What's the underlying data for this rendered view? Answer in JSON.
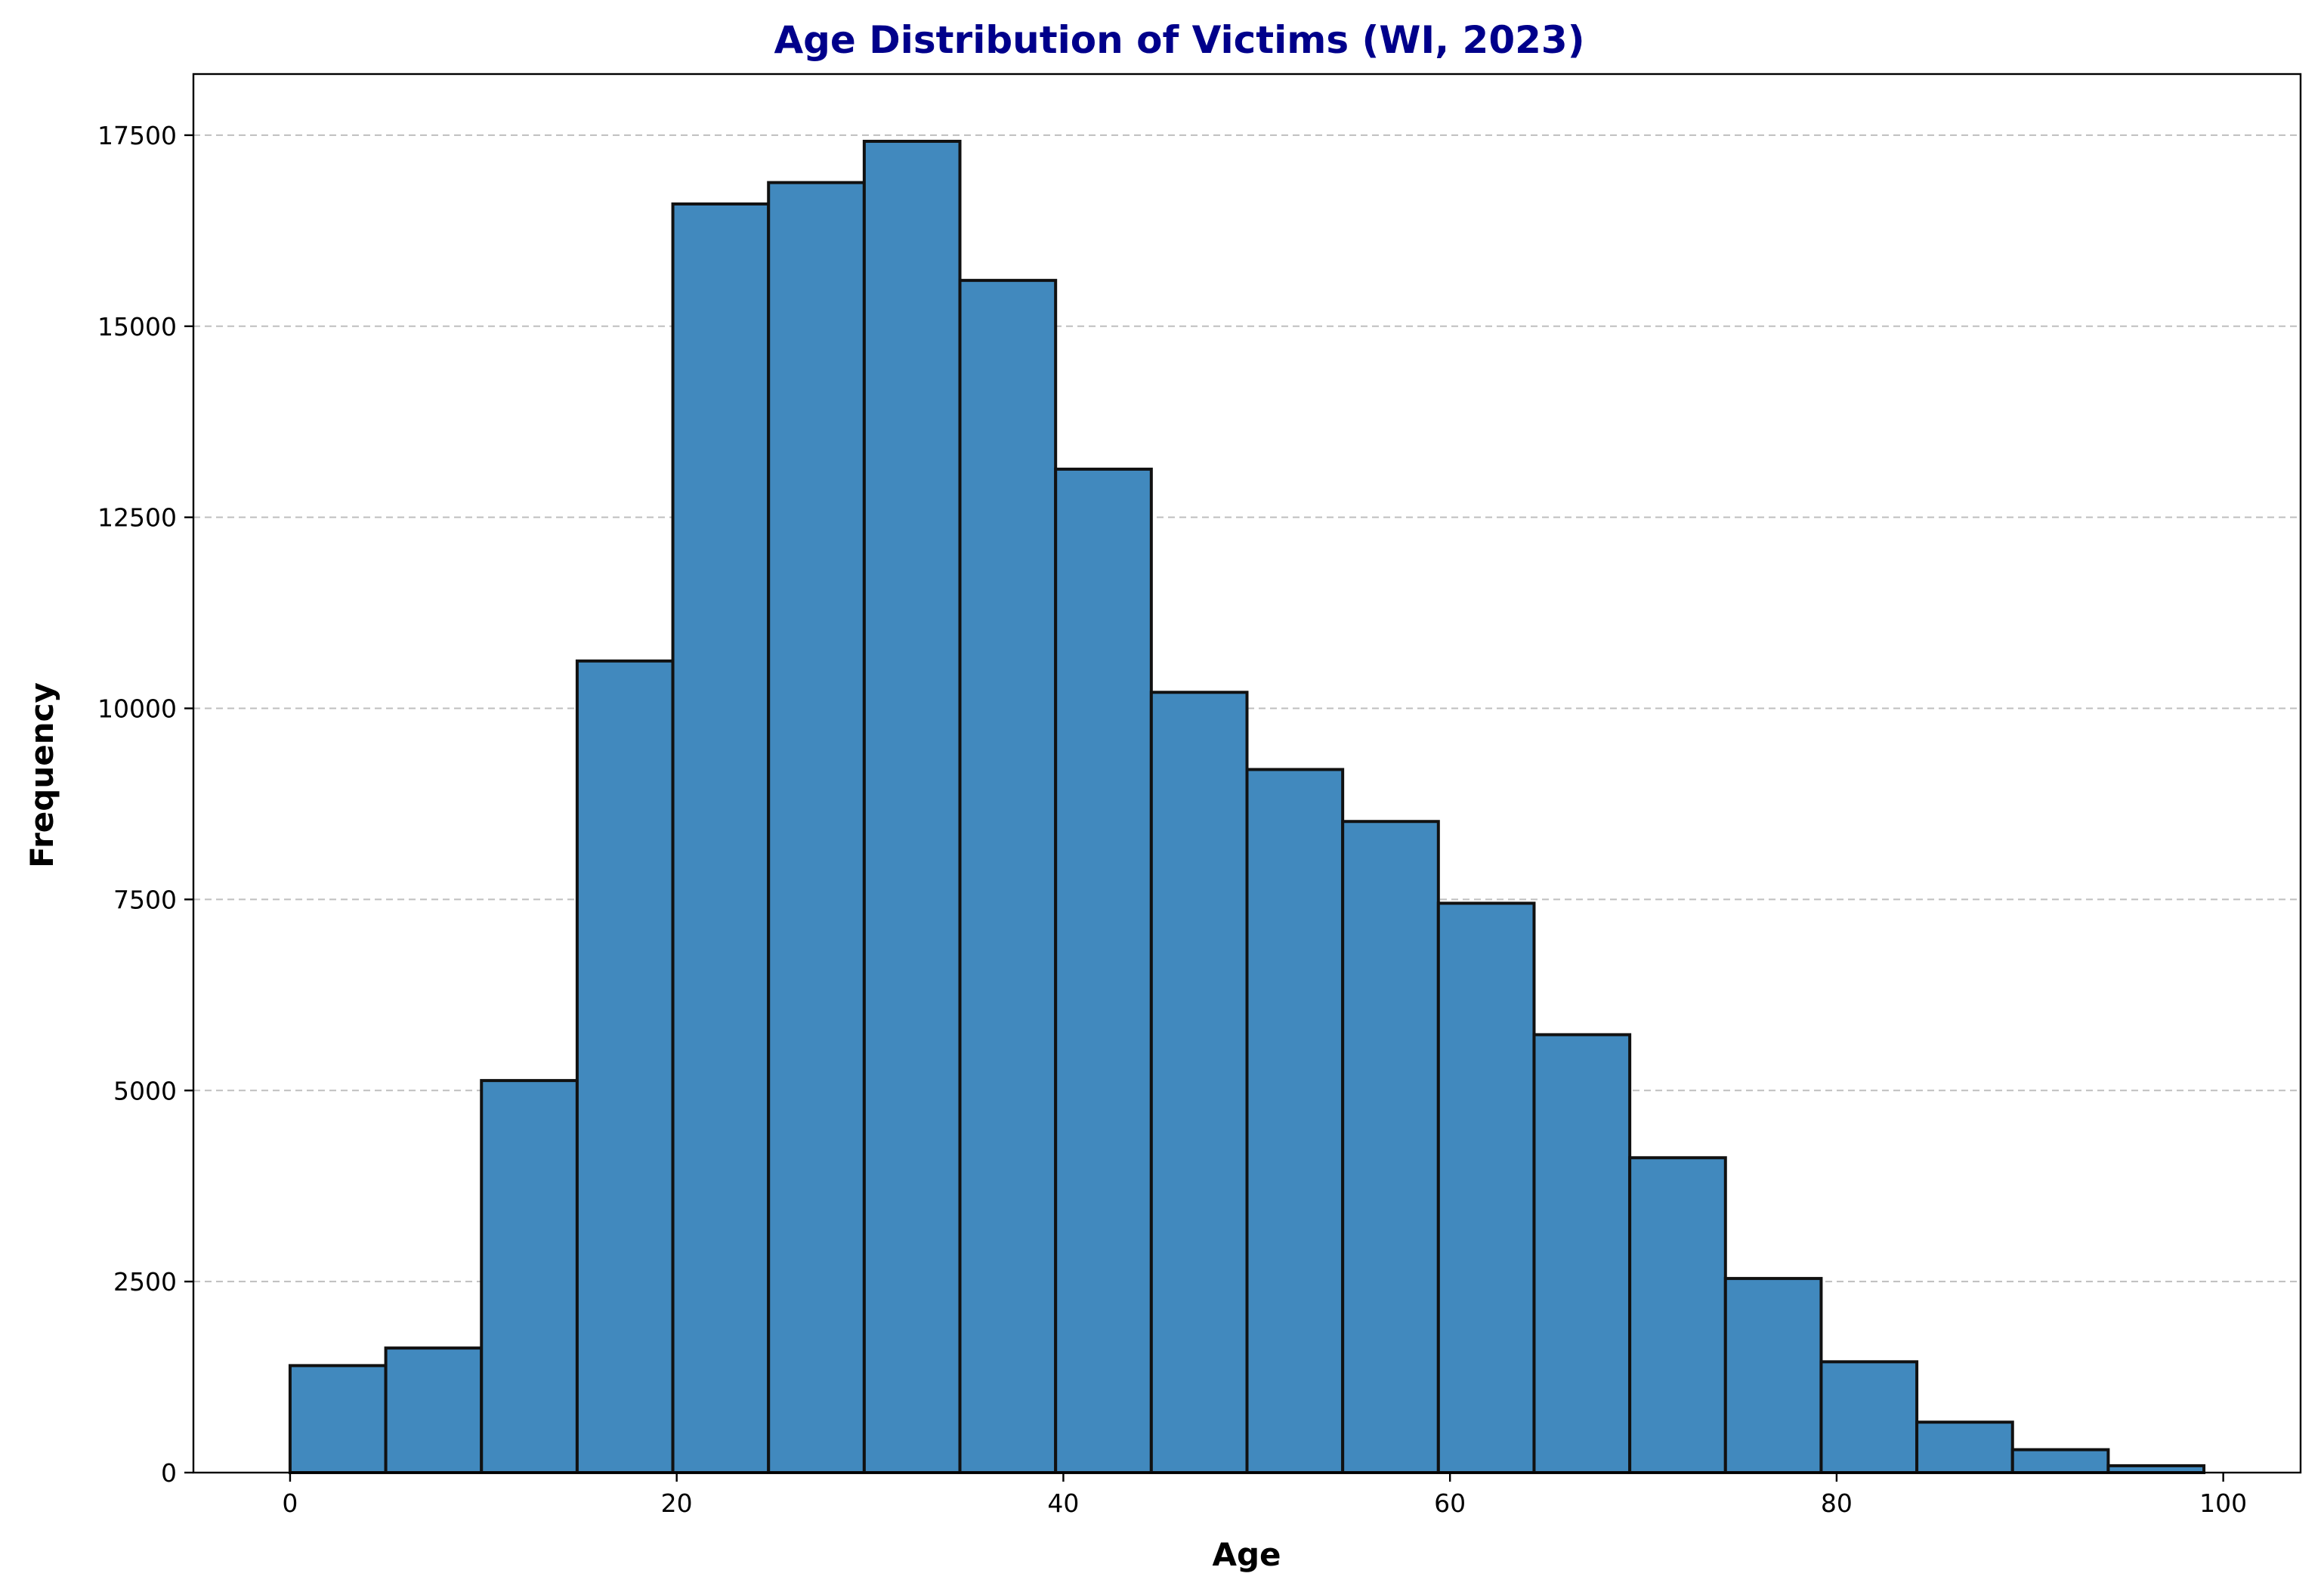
{
  "chart_data": {
    "type": "bar",
    "title": "Age Distribution of Victims (WI, 2023)",
    "xlabel": "Age",
    "ylabel": "Frequency",
    "bin_edges": [
      0,
      4.95,
      9.9,
      14.85,
      19.8,
      24.75,
      29.7,
      34.65,
      39.6,
      44.55,
      49.5,
      54.45,
      59.4,
      64.35,
      69.3,
      74.25,
      79.2,
      84.15,
      89.1,
      94.05,
      99
    ],
    "values": [
      1400,
      1630,
      5130,
      10620,
      16600,
      16880,
      17420,
      15600,
      13130,
      10210,
      9200,
      8520,
      7450,
      5730,
      4120,
      2540,
      1450,
      660,
      300,
      90
    ],
    "xlim": [
      -5,
      104
    ],
    "ylim": [
      0,
      18300
    ],
    "xticks": [
      "0",
      "20",
      "40",
      "60",
      "80",
      "100"
    ],
    "yticks": [
      "0",
      "2500",
      "5000",
      "7500",
      "10000",
      "12500",
      "15000",
      "17500"
    ],
    "grid": "y-dashed",
    "bar_color": "#4189be",
    "edge_color": "#111111",
    "title_color": "#00008b",
    "grid_color": "#bfbfbf"
  }
}
